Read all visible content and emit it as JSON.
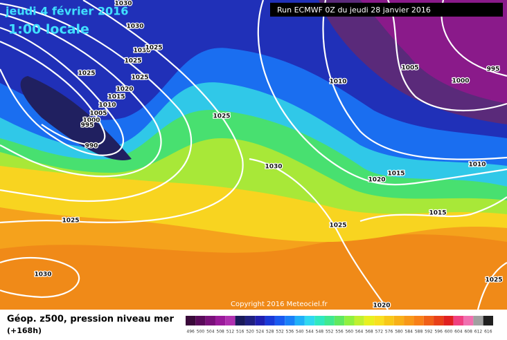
{
  "header": {
    "date": "jeudi 4 février 2016",
    "time": "1:00 locale",
    "run": "Run ECMWF 0Z du jeudi 28 janvier 2016"
  },
  "copyright": "Copyright 2016 Meteociel.fr",
  "legend": {
    "title": "Géop. z500, pression niveau mer",
    "lead": "(+168h)",
    "labels": [
      "496",
      "500",
      "504",
      "508",
      "512",
      "516",
      "520",
      "524",
      "528",
      "532",
      "536",
      "540",
      "544",
      "548",
      "552",
      "556",
      "560",
      "564",
      "568",
      "572",
      "576",
      "580",
      "584",
      "588",
      "592",
      "596",
      "600",
      "604",
      "608",
      "612",
      "616"
    ],
    "colors": [
      "#3a0a3a",
      "#5a0a5a",
      "#7a107a",
      "#9a1a9a",
      "#b030b0",
      "#1a1a5a",
      "#202080",
      "#2020b0",
      "#1a3ad8",
      "#1a5af0",
      "#1a80f8",
      "#20b0f8",
      "#30d8f0",
      "#30e8c0",
      "#40e890",
      "#60e860",
      "#90f040",
      "#c0f030",
      "#e8f020",
      "#f8e020",
      "#f8c818",
      "#f8b018",
      "#f89818",
      "#f88018",
      "#f06018",
      "#e84018",
      "#e02020",
      "#f04080",
      "#f070b0",
      "#a0a0a0",
      "#202020"
    ]
  },
  "isobar_labels": [
    "1030",
    "1030",
    "1030",
    "1025",
    "1025",
    "1025",
    "1025",
    "1020",
    "1015",
    "1010",
    "1005",
    "1000",
    "995",
    "990",
    "1025",
    "1010",
    "1005",
    "1000",
    "995",
    "1030",
    "1020",
    "1015",
    "1010",
    "1015",
    "1025",
    "1025",
    "1030",
    "1025",
    "1020"
  ]
}
